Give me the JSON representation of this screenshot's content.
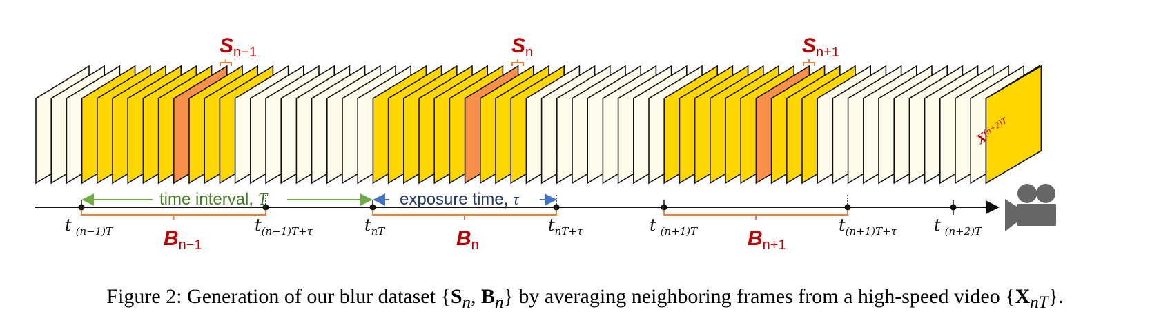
{
  "colors": {
    "frame_plain": "#FFFBEA",
    "frame_blur": "#FFD700",
    "frame_sharp": "#F9904A",
    "frame_stroke": "#111111",
    "interval_green": "#70AD47",
    "interval_text": "#3F7F1F",
    "exposure_blue": "#4472C4",
    "exposure_text": "#203864",
    "bracket_orange": "#ED7D31",
    "label_red": "#C00000",
    "camera_gray": "#666666"
  },
  "frames": {
    "count": 63,
    "blur_groups": [
      [
        3,
        12
      ],
      [
        22,
        31
      ],
      [
        41,
        50
      ]
    ],
    "sharp_indices": [
      9,
      28,
      47
    ],
    "last_frame_label": {
      "base": "X",
      "sub": "(n+2)T"
    }
  },
  "sharp_labels": [
    {
      "base": "S",
      "sub": "n−1"
    },
    {
      "base": "S",
      "sub": "n"
    },
    {
      "base": "S",
      "sub": "n+1"
    }
  ],
  "blur_labels": [
    {
      "base": "B",
      "sub": "n−1"
    },
    {
      "base": "B",
      "sub": "n"
    },
    {
      "base": "B",
      "sub": "n+1"
    }
  ],
  "time_labels": [
    {
      "base": "t",
      "sub": "(n−1)T"
    },
    {
      "base": "t",
      "sub": "(n−1)T+τ"
    },
    {
      "base": "t",
      "sub": "nT"
    },
    {
      "base": "t",
      "sub": "nT+τ"
    },
    {
      "base": "t",
      "sub": "(n+1)T"
    },
    {
      "base": "t",
      "sub": "(n+1)T+τ"
    },
    {
      "base": "t",
      "sub": "(n+2)T"
    }
  ],
  "annotations": {
    "interval_label": "time interval, ",
    "interval_symbol": "T",
    "exposure_label": "exposure time, ",
    "exposure_symbol": "τ"
  },
  "icons": {
    "camera": "video-camera-icon"
  },
  "caption": {
    "p1": "Figure 2: Generation of our blur dataset {",
    "S": "S",
    "S_sub": "n",
    "comma": ", ",
    "B": "B",
    "B_sub": "n",
    "p2": "} by averaging neighboring frames from a high-speed video {",
    "X": "X",
    "X_sub": "nT",
    "p3": "}."
  }
}
